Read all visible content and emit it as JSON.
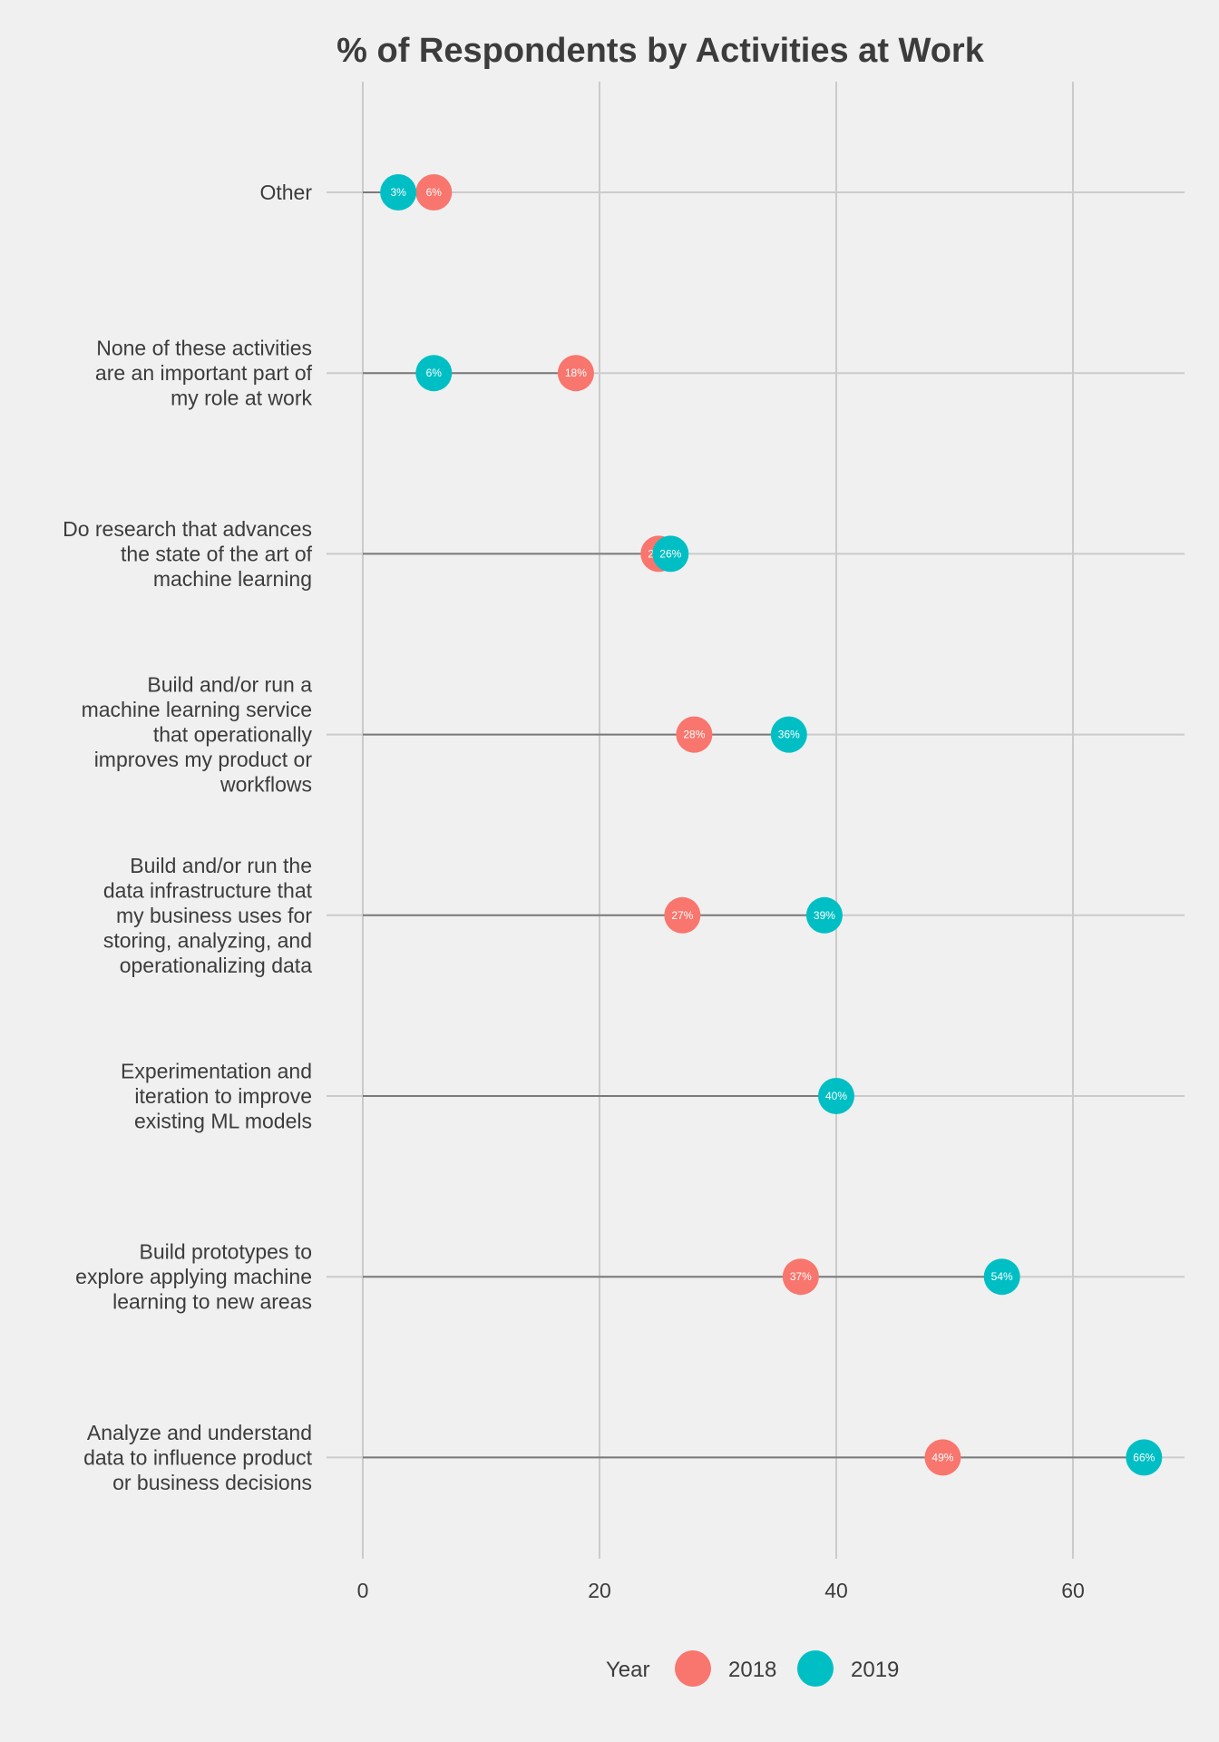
{
  "chart_data": {
    "type": "dumbbell",
    "title": "% of Respondents by Activities at Work",
    "xlabel": "",
    "ylabel": "",
    "xlim": [
      0,
      69
    ],
    "x_ticks": [
      0,
      20,
      40,
      60
    ],
    "x_tick_labels": [
      "0",
      "20",
      "40",
      "60"
    ],
    "grid": true,
    "legend_position": "bottom",
    "legend_title": "Year",
    "colors": {
      "2018": "#f8766d",
      "2019": "#00bfc4"
    },
    "categories": [
      {
        "label_lines": [
          "Other"
        ],
        "values": {
          "2018": 6,
          "2019": 3
        },
        "labels": {
          "2018": "6%",
          "2019": "3%"
        }
      },
      {
        "label_lines": [
          "None of these activities",
          "are an important part of",
          "my role at work"
        ],
        "values": {
          "2018": 18,
          "2019": 6
        },
        "labels": {
          "2018": "18%",
          "2019": "6%"
        }
      },
      {
        "label_lines": [
          "Do research that advances",
          "the state of the art of",
          "machine learning"
        ],
        "values": {
          "2018": 25,
          "2019": 26
        },
        "labels": {
          "2018": "25%",
          "2019": "26%"
        }
      },
      {
        "label_lines": [
          "Build and/or run a",
          "machine learning service",
          "that operationally",
          "improves my product or",
          "workflows"
        ],
        "values": {
          "2018": 28,
          "2019": 36
        },
        "labels": {
          "2018": "28%",
          "2019": "36%"
        }
      },
      {
        "label_lines": [
          "Build and/or run the",
          "data infrastructure that",
          "my business uses for",
          "storing, analyzing, and",
          "operationalizing data"
        ],
        "values": {
          "2018": 27,
          "2019": 39
        },
        "labels": {
          "2018": "27%",
          "2019": "39%"
        }
      },
      {
        "label_lines": [
          "Experimentation and",
          "iteration to improve",
          "existing ML models"
        ],
        "values": {
          "2019": 40
        },
        "labels": {
          "2019": "40%"
        }
      },
      {
        "label_lines": [
          "Build prototypes to",
          "explore applying machine",
          "learning to new areas"
        ],
        "values": {
          "2018": 37,
          "2019": 54
        },
        "labels": {
          "2018": "37%",
          "2019": "54%"
        }
      },
      {
        "label_lines": [
          "Analyze and understand",
          "data to influence product",
          "or business decisions"
        ],
        "values": {
          "2018": 49,
          "2019": 66
        },
        "labels": {
          "2018": "49%",
          "2019": "66%"
        }
      }
    ],
    "series": [
      {
        "name": "2018",
        "key": "2018"
      },
      {
        "name": "2019",
        "key": "2019"
      }
    ]
  }
}
